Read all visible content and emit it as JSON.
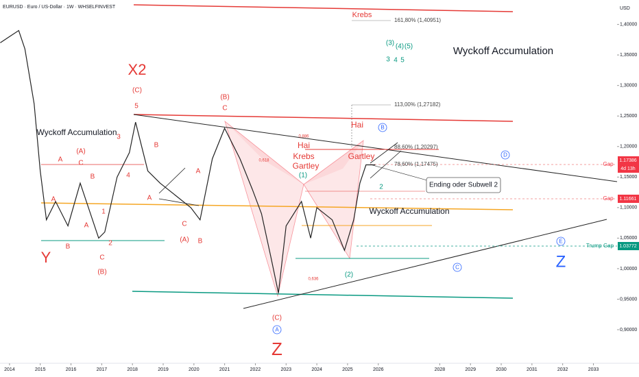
{
  "chart_data": {
    "type": "line",
    "title": "EURUSD · Euro / US-Dollar · 1W · WHSELFINVEST",
    "currency": "USD",
    "color": "#222222",
    "x": [
      2013.7,
      2014.0,
      2014.3,
      2014.5,
      2014.8,
      2015.0,
      2015.2,
      2015.5,
      2015.9,
      2016.3,
      2016.9,
      2017.1,
      2017.5,
      2017.9,
      2018.1,
      2018.5,
      2018.9,
      2019.4,
      2019.9,
      2020.2,
      2020.6,
      2021.0,
      2021.5,
      2021.9,
      2022.2,
      2022.5,
      2022.75,
      2023.0,
      2023.5,
      2023.8,
      2024.0,
      2024.5,
      2024.9,
      2025.2,
      2025.4,
      2025.6,
      2025.9
    ],
    "values": [
      1.37,
      1.38,
      1.39,
      1.36,
      1.27,
      1.16,
      1.08,
      1.11,
      1.07,
      1.14,
      1.05,
      1.06,
      1.15,
      1.19,
      1.24,
      1.16,
      1.14,
      1.12,
      1.1,
      1.08,
      1.18,
      1.23,
      1.18,
      1.13,
      1.09,
      1.02,
      0.96,
      1.07,
      1.11,
      1.05,
      1.1,
      1.08,
      1.03,
      1.08,
      1.14,
      1.17,
      1.17
    ],
    "xlim": [
      2013.69,
      2033.77
    ],
    "xticks": [
      2014,
      2015,
      2016,
      2017,
      2018,
      2019,
      2020,
      2021,
      2022,
      2023,
      2024,
      2025,
      2026,
      2028,
      2029,
      2030,
      2031,
      2032,
      2033
    ],
    "ylim": [
      0.845,
      1.44
    ],
    "yticks": [
      {
        "value": 0.9,
        "label": "0,90000"
      },
      {
        "value": 0.95,
        "label": "0,95000"
      },
      {
        "value": 1.0,
        "label": "1,00000"
      },
      {
        "value": 1.05,
        "label": "1,05000"
      },
      {
        "value": 1.1,
        "label": "1,10000"
      },
      {
        "value": 1.15,
        "label": "1,15000"
      },
      {
        "value": 1.2,
        "label": "1,20000"
      },
      {
        "value": 1.25,
        "label": "1,25000"
      },
      {
        "value": 1.3,
        "label": "1,30000"
      },
      {
        "value": 1.35,
        "label": "1,35000"
      },
      {
        "value": 1.4,
        "label": "1,40000"
      }
    ],
    "annotations": [
      "Krebs",
      "161,80% (1,40951)",
      "(3)",
      "(4)",
      "(5)",
      "3",
      "4",
      "5",
      "Wyckoff Accumulation",
      "X2",
      "(C)",
      "5",
      "(B)",
      "C",
      "113,00% (1,27182)",
      "Hai",
      "Wyckoff Accumulation",
      "3",
      "B",
      "(A)",
      "A",
      "C",
      "Hai",
      "Krebs",
      "Gartley",
      "Gartley",
      "88,60% (1,20297)",
      "78,60% (1,17475)",
      "A",
      "B",
      "(1)",
      "4",
      "2",
      "Ending oder Subwell 2",
      "A",
      "A",
      "1",
      "Wyckoff Accumulation",
      "A",
      "C",
      "(A)",
      "B",
      "B",
      "2",
      "C",
      "Y",
      "(B)",
      "(2)",
      "(C)",
      "Z",
      "Z",
      "Gap",
      "Gap",
      "Trump Gap",
      "0,618",
      "0,886",
      "0,636"
    ],
    "wave_circles": [
      "A",
      "B",
      "C",
      "D",
      "E"
    ],
    "price_tags": [
      "1.17386",
      "4d 13h",
      "1.11661",
      "1.03772"
    ]
  }
}
